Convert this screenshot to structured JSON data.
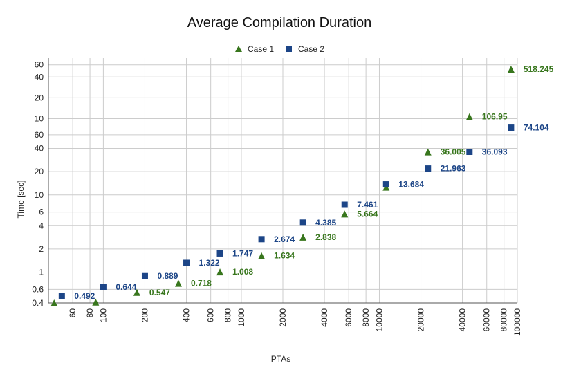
{
  "chart_data": {
    "type": "scatter",
    "title": "Average Compilation Duration",
    "xlabel": "PTAs",
    "ylabel": "Time [sec]",
    "xscale": "log",
    "yscale": "log",
    "xlim": [
      40,
      100000
    ],
    "grid": true,
    "legend": "top-center",
    "x_ticks": [
      "60",
      "80",
      "100",
      "200",
      "400",
      "600",
      "800",
      "1000",
      "2000",
      "4000",
      "6000",
      "8000",
      "10000",
      "20000",
      "40000",
      "60000",
      "80000",
      "100000"
    ],
    "y_ticks_lower": [
      "0.4",
      "0.6",
      "1",
      "2",
      "4",
      "6",
      "10",
      "20",
      "40",
      "60"
    ],
    "y_ticks_upper": [
      "10",
      "20",
      "40",
      "60"
    ],
    "series": [
      {
        "name": "Case 1",
        "color": "#38761d",
        "marker": "triangle",
        "points": [
          {
            "x": 44,
            "y": 0.39,
            "label": ""
          },
          {
            "x": 88,
            "y": 0.41,
            "label": ""
          },
          {
            "x": 175,
            "y": 0.547,
            "label": "0.547"
          },
          {
            "x": 350,
            "y": 0.718,
            "label": "0.718"
          },
          {
            "x": 700,
            "y": 1.008,
            "label": "1.008"
          },
          {
            "x": 1400,
            "y": 1.634,
            "label": "1.634"
          },
          {
            "x": 2800,
            "y": 2.838,
            "label": "2.838"
          },
          {
            "x": 5600,
            "y": 5.664,
            "label": "5.664"
          },
          {
            "x": 11200,
            "y": 12.6,
            "label": ""
          },
          {
            "x": 22500,
            "y": 36.005,
            "label": "36.005"
          },
          {
            "x": 45000,
            "y": 106.95,
            "label": "106.95"
          },
          {
            "x": 90000,
            "y": 518.245,
            "label": "518.245"
          }
        ]
      },
      {
        "name": "Case 2",
        "color": "#1c4587",
        "marker": "square",
        "points": [
          {
            "x": 50,
            "y": 0.492,
            "label": "0.492"
          },
          {
            "x": 100,
            "y": 0.644,
            "label": "0.644"
          },
          {
            "x": 200,
            "y": 0.889,
            "label": "0.889"
          },
          {
            "x": 400,
            "y": 1.322,
            "label": "1.322"
          },
          {
            "x": 700,
            "y": 1.747,
            "label": "1.747"
          },
          {
            "x": 1400,
            "y": 2.674,
            "label": "2.674"
          },
          {
            "x": 2800,
            "y": 4.385,
            "label": "4.385"
          },
          {
            "x": 5600,
            "y": 7.461,
            "label": "7.461"
          },
          {
            "x": 11200,
            "y": 13.684,
            "label": "13.684"
          },
          {
            "x": 22500,
            "y": 21.963,
            "label": "21.963"
          },
          {
            "x": 45000,
            "y": 36.093,
            "label": "36.093"
          },
          {
            "x": 90000,
            "y": 74.104,
            "label": "74.104"
          }
        ]
      }
    ]
  }
}
